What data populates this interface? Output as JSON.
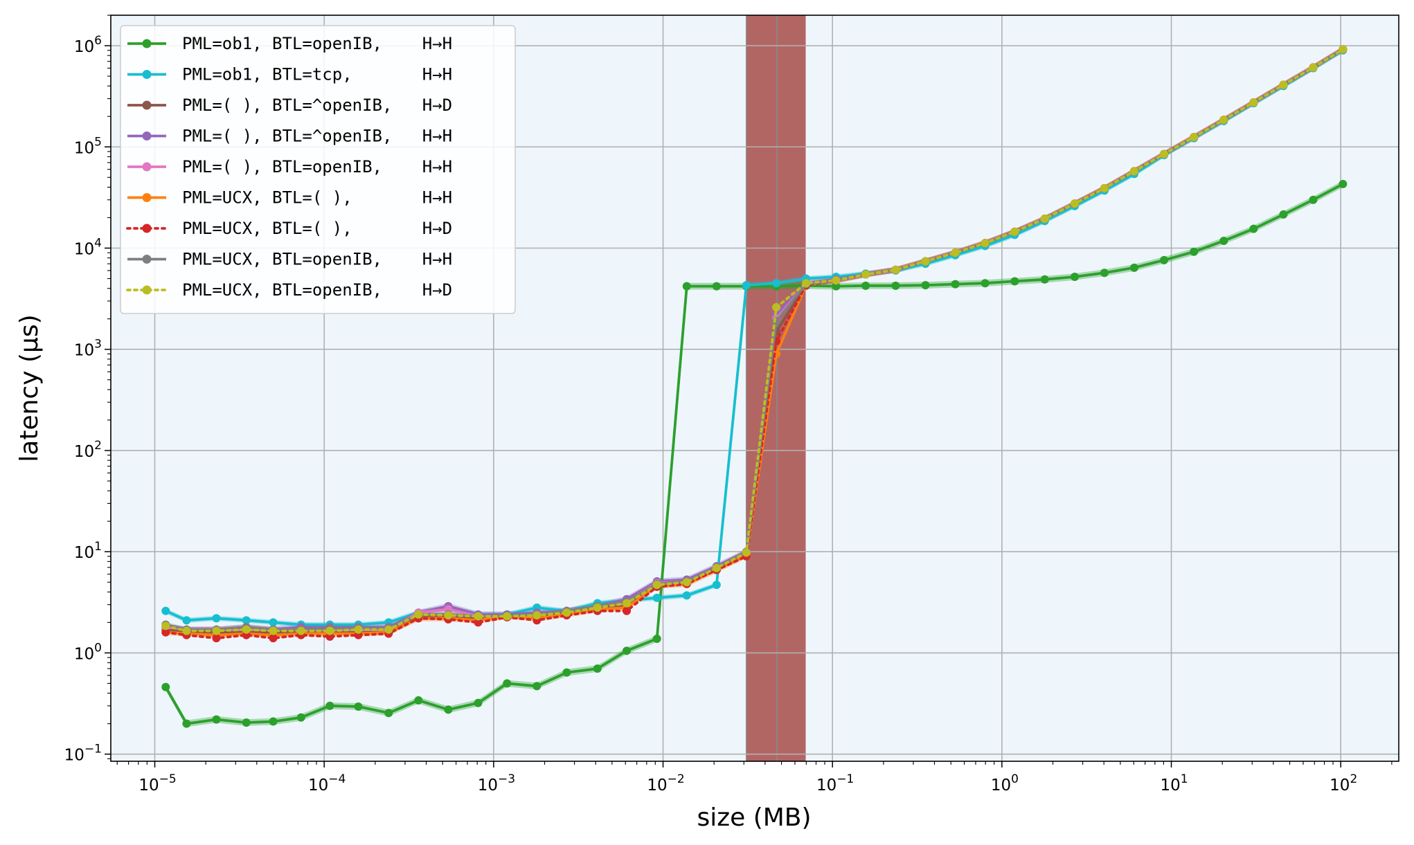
{
  "chart_data": {
    "type": "line",
    "xscale": "log",
    "yscale": "log",
    "xlabel": "size (MB)",
    "ylabel": "latency (μs)",
    "xlim": [
      5.5e-06,
      220
    ],
    "ylim": [
      0.085,
      2000000
    ],
    "grid": true,
    "legend_position": "top-left",
    "background": "#eef6fc",
    "x_ticks": [
      {
        "value": 1e-05,
        "base": "10",
        "exp": "−5"
      },
      {
        "value": 0.0001,
        "base": "10",
        "exp": "−4"
      },
      {
        "value": 0.001,
        "base": "10",
        "exp": "−3"
      },
      {
        "value": 0.01,
        "base": "10",
        "exp": "−2"
      },
      {
        "value": 0.1,
        "base": "10",
        "exp": "−1"
      },
      {
        "value": 1,
        "base": "10",
        "exp": "0"
      },
      {
        "value": 10,
        "base": "10",
        "exp": "1"
      },
      {
        "value": 100,
        "base": "10",
        "exp": "2"
      }
    ],
    "y_ticks": [
      {
        "value": 0.1,
        "base": "10",
        "exp": "−1"
      },
      {
        "value": 1,
        "base": "10",
        "exp": "0"
      },
      {
        "value": 10,
        "base": "10",
        "exp": "1"
      },
      {
        "value": 100,
        "base": "10",
        "exp": "2"
      },
      {
        "value": 1000,
        "base": "10",
        "exp": "3"
      },
      {
        "value": 10000,
        "base": "10",
        "exp": "4"
      },
      {
        "value": 100000,
        "base": "10",
        "exp": "5"
      },
      {
        "value": 1000000,
        "base": "10",
        "exp": "6"
      }
    ],
    "shaded_regions": [
      {
        "x0": 0.031,
        "x1": 0.047,
        "color": "#b26664"
      },
      {
        "x0": 0.047,
        "x1": 0.0695,
        "color": "#b26664"
      }
    ],
    "x": [
      1.16e-05,
      1.54e-05,
      2.31e-05,
      3.47e-05,
      5e-05,
      7.3e-05,
      0.000108,
      0.000159,
      0.00024,
      0.00036,
      0.00054,
      0.00081,
      0.0012,
      0.0018,
      0.0027,
      0.0041,
      0.0061,
      0.0092,
      0.0138,
      0.0207,
      0.031,
      0.0466,
      0.0698,
      0.105,
      0.157,
      0.236,
      0.354,
      0.531,
      0.796,
      1.19,
      1.79,
      2.69,
      4.03,
      6.04,
      9.06,
      13.6,
      20.4,
      30.6,
      45.9,
      68.8,
      103
    ],
    "series": [
      {
        "name": "PML=ob1, BTL=openIB,    H→H",
        "color": "#2ca02c",
        "dash": "",
        "band": 0.08,
        "values": [
          0.46,
          0.2,
          0.22,
          0.205,
          0.21,
          0.23,
          0.3,
          0.295,
          0.255,
          0.34,
          0.275,
          0.32,
          0.5,
          0.47,
          0.64,
          0.7,
          1.05,
          1.38,
          4200,
          4200,
          4200,
          4200,
          4250,
          4200,
          4250,
          4250,
          4300,
          4400,
          4500,
          4700,
          4900,
          5200,
          5700,
          6400,
          7600,
          9200,
          11800,
          15500,
          21500,
          30000,
          43000
        ]
      },
      {
        "name": "PML=ob1, BTL=tcp,       H→H",
        "color": "#17becf",
        "dash": "",
        "band": 0.06,
        "values": [
          2.6,
          2.1,
          2.2,
          2.1,
          2.0,
          1.9,
          1.9,
          1.9,
          2.0,
          2.5,
          2.8,
          2.4,
          2.4,
          2.8,
          2.6,
          3.1,
          3.3,
          3.5,
          3.7,
          4.7,
          4300,
          4500,
          5000,
          5200,
          5600,
          6000,
          7000,
          8500,
          10500,
          13500,
          18500,
          26000,
          37000,
          54000,
          83000,
          122000,
          180000,
          270000,
          400000,
          600000,
          900000
        ]
      },
      {
        "name": "PML=( ), BTL=^openIB,   H→D",
        "color": "#8c564b",
        "dash": "",
        "band": 0.06,
        "values": [
          1.7,
          1.6,
          1.6,
          1.6,
          1.6,
          1.6,
          1.6,
          1.6,
          1.6,
          2.3,
          2.3,
          2.2,
          2.3,
          2.3,
          2.5,
          2.8,
          2.9,
          4.6,
          4.9,
          6.8,
          9.3,
          1500,
          4300,
          4800,
          5500,
          6100,
          7400,
          9000,
          11200,
          14500,
          19500,
          27500,
          39000,
          57500,
          85000,
          125000,
          185000,
          275000,
          410000,
          610000,
          920000
        ]
      },
      {
        "name": "PML=( ), BTL=^openIB,   H→H",
        "color": "#9467bd",
        "dash": "",
        "band": 0.07,
        "values": [
          1.8,
          1.7,
          1.7,
          1.8,
          1.7,
          1.8,
          1.8,
          1.8,
          1.8,
          2.5,
          2.9,
          2.4,
          2.4,
          2.5,
          2.6,
          2.9,
          3.4,
          5.1,
          5.3,
          7.2,
          10,
          2200,
          4500,
          4900,
          5500,
          6100,
          7400,
          9000,
          11200,
          14500,
          19500,
          27500,
          39000,
          57500,
          85000,
          125000,
          185000,
          275000,
          410000,
          610000,
          920000
        ]
      },
      {
        "name": "PML=( ), BTL=openIB,    H→H",
        "color": "#e377c2",
        "dash": "",
        "band": 0.07,
        "values": [
          1.8,
          1.7,
          1.7,
          1.7,
          1.7,
          1.7,
          1.7,
          1.7,
          1.7,
          2.5,
          2.7,
          2.3,
          2.3,
          2.4,
          2.6,
          2.9,
          3.2,
          4.9,
          5.1,
          7.0,
          9.8,
          2000,
          4400,
          4800,
          5500,
          6100,
          7400,
          9000,
          11200,
          14500,
          19500,
          27500,
          39000,
          57500,
          85000,
          125000,
          185000,
          275000,
          410000,
          610000,
          920000
        ]
      },
      {
        "name": "PML=UCX, BTL=( ),       H→H",
        "color": "#ff7f0e",
        "dash": "",
        "band": 0.07,
        "values": [
          1.6,
          1.55,
          1.5,
          1.55,
          1.5,
          1.55,
          1.55,
          1.55,
          1.6,
          2.2,
          2.2,
          2.1,
          2.3,
          2.2,
          2.4,
          2.7,
          2.8,
          4.6,
          4.8,
          6.6,
          9.2,
          900,
          4300,
          4800,
          5500,
          6100,
          7400,
          9000,
          11200,
          14500,
          19500,
          27500,
          39000,
          57500,
          85000,
          125000,
          185000,
          275000,
          410000,
          610000,
          920000
        ]
      },
      {
        "name": "PML=UCX, BTL=( ),       H→D",
        "color": "#d62728",
        "dash": "4 6",
        "band": 0,
        "values": [
          1.6,
          1.5,
          1.4,
          1.5,
          1.4,
          1.5,
          1.45,
          1.5,
          1.55,
          2.2,
          2.15,
          2.0,
          2.25,
          2.1,
          2.35,
          2.6,
          2.6,
          4.5,
          4.8,
          6.6,
          9.0,
          1200,
          4300,
          4800,
          5500,
          6100,
          7400,
          9000,
          11200,
          14500,
          19500,
          27500,
          39000,
          57500,
          85000,
          125000,
          185000,
          275000,
          410000,
          610000,
          920000
        ]
      },
      {
        "name": "PML=UCX, BTL=openIB,    H→H",
        "color": "#7f7f7f",
        "dash": "",
        "band": 0.06,
        "values": [
          1.9,
          1.7,
          1.7,
          1.8,
          1.7,
          1.7,
          1.75,
          1.75,
          1.75,
          2.4,
          2.4,
          2.3,
          2.35,
          2.4,
          2.6,
          2.9,
          3.2,
          4.8,
          5.1,
          7.0,
          9.9,
          1900,
          4400,
          4800,
          5500,
          6100,
          7400,
          9000,
          11200,
          14500,
          19500,
          27500,
          39000,
          57500,
          85000,
          125000,
          185000,
          275000,
          410000,
          610000,
          920000
        ]
      },
      {
        "name": "PML=UCX, BTL=openIB,    H→D",
        "color": "#bcbd22",
        "dash": "4 6",
        "band": 0,
        "values": [
          1.85,
          1.65,
          1.65,
          1.7,
          1.65,
          1.65,
          1.65,
          1.7,
          1.7,
          2.4,
          2.35,
          2.3,
          2.3,
          2.35,
          2.5,
          2.8,
          3.1,
          4.7,
          5.0,
          6.9,
          9.8,
          2600,
          4500,
          4800,
          5500,
          6100,
          7400,
          9000,
          11200,
          14500,
          19500,
          27500,
          39000,
          57500,
          85000,
          125000,
          185000,
          275000,
          410000,
          610000,
          920000
        ]
      }
    ]
  }
}
